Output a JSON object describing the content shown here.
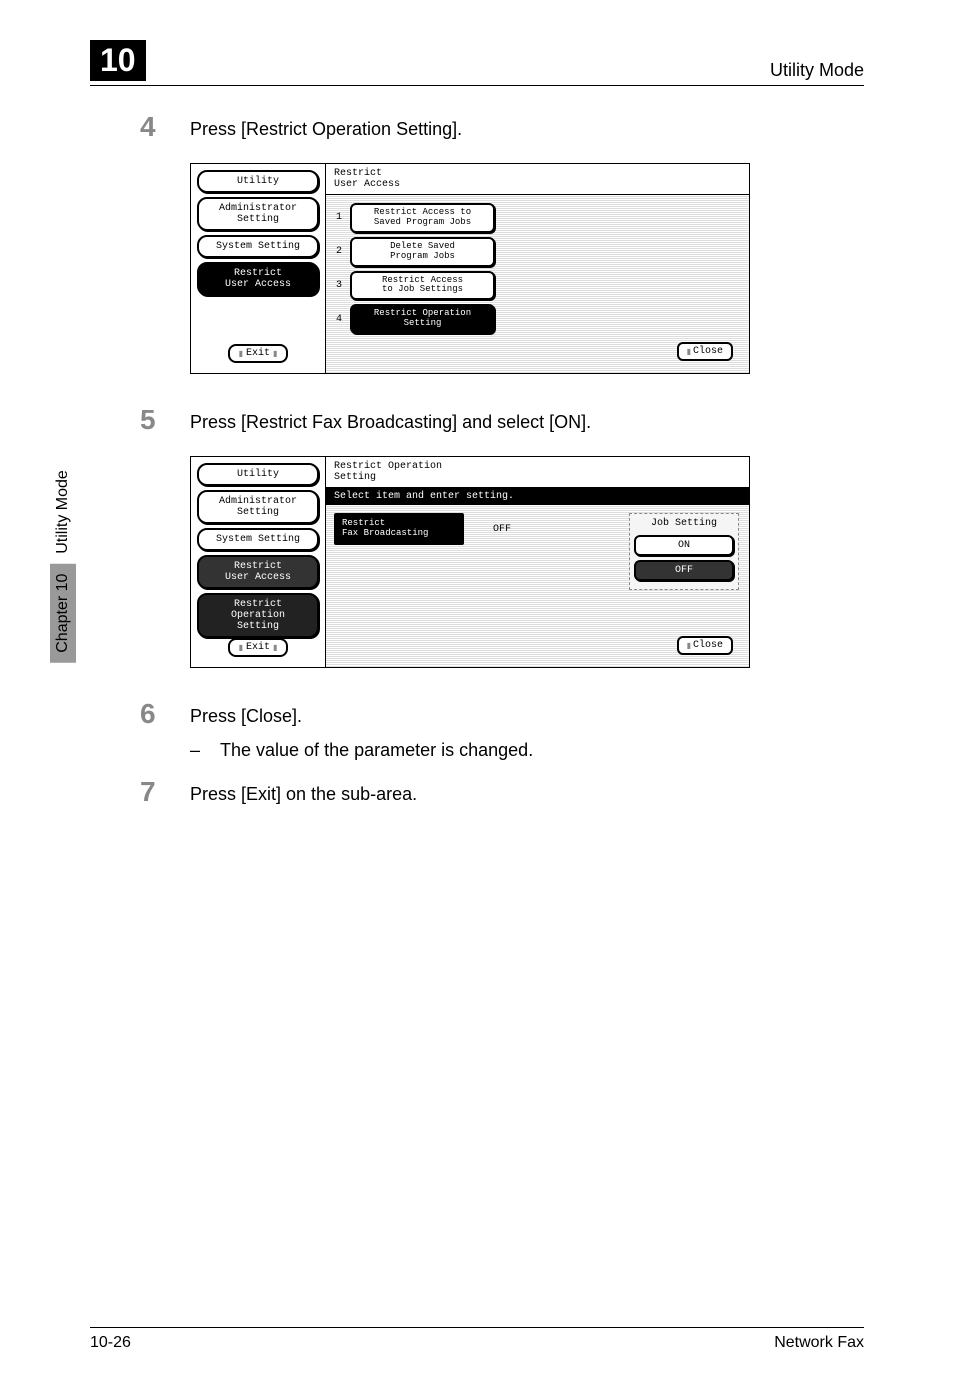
{
  "header": {
    "chapter_num": "10",
    "title": "Utility Mode"
  },
  "side_tab": {
    "label": "Utility Mode",
    "chapter": "Chapter 10"
  },
  "steps": [
    {
      "num": "4",
      "text": "Press [Restrict Operation Setting]."
    },
    {
      "num": "5",
      "text": "Press [Restrict Fax Broadcasting] and select [ON]."
    },
    {
      "num": "6",
      "text": "Press [Close].",
      "sub": "The value of the parameter is changed."
    },
    {
      "num": "7",
      "text": "Press [Exit] on the sub-area."
    }
  ],
  "screen1": {
    "crumbs": [
      "Utility",
      "Administrator\nSetting",
      "System Setting",
      "Restrict\nUser Access"
    ],
    "selected_idx": 3,
    "exit": "Exit",
    "title": "Restrict\nUser Access",
    "menu": [
      {
        "n": "1",
        "label": "Restrict Access to\nSaved Program Jobs"
      },
      {
        "n": "2",
        "label": "Delete Saved\nProgram Jobs"
      },
      {
        "n": "3",
        "label": "Restrict Access\nto Job Settings"
      },
      {
        "n": "4",
        "label": "Restrict Operation\nSetting"
      }
    ],
    "close": "Close"
  },
  "screen2": {
    "crumbs": [
      "Utility",
      "Administrator\nSetting",
      "System Setting",
      "Restrict\nUser Access",
      "Restrict Operation\nSetting"
    ],
    "selected_idx": 4,
    "exit": "Exit",
    "title": "Restrict Operation\nSetting",
    "subtitle": "Select item and enter setting.",
    "setting_label": "Restrict\nFax Broadcasting",
    "setting_value": "OFF",
    "job_setting": "Job Setting",
    "on": "ON",
    "off": "OFF",
    "close": "Close"
  },
  "footer": {
    "page": "10-26",
    "product": "Network Fax"
  }
}
